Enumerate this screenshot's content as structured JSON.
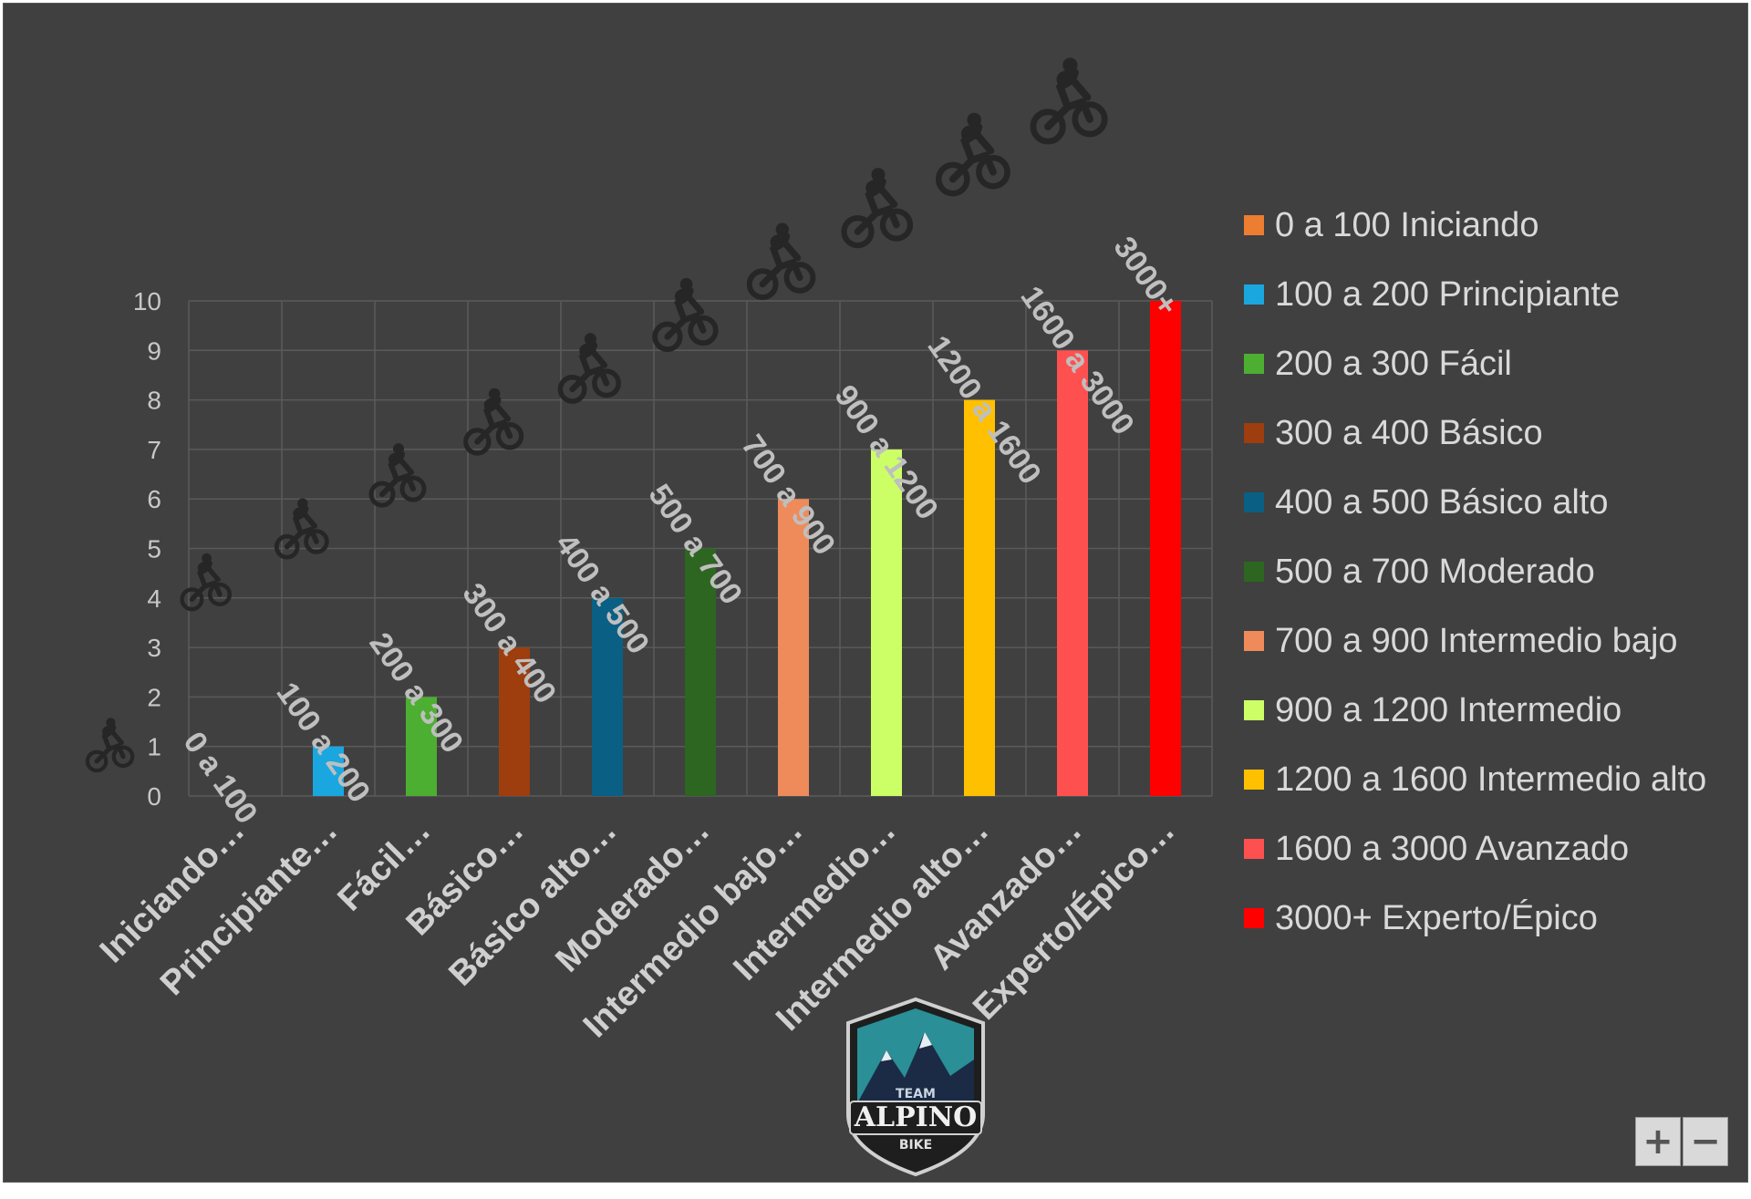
{
  "chart_data": {
    "type": "bar",
    "categories": [
      "Iniciando…",
      "Principiante…",
      "Fácil…",
      "Básico…",
      "Básico alto…",
      "Moderado…",
      "Intermedio bajo…",
      "Intermedio…",
      "Intermedio alto…",
      "Avanzado…",
      "Experto/Épico…"
    ],
    "values": [
      0,
      1,
      2,
      3,
      4,
      5,
      6,
      7,
      8,
      9,
      10
    ],
    "data_labels": [
      "0 a 100",
      "100 a 200",
      "200 a 300",
      "300 a 400",
      "400 a 500",
      "500 a 700",
      "700 a 900",
      "900 a 1200",
      "1200 a 1600",
      "1600 a 3000",
      "3000+"
    ],
    "colors": [
      "#ED7D31",
      "#1AA7E0",
      "#4CAF32",
      "#9E3D0E",
      "#0A5F84",
      "#2D6620",
      "#EF8B5B",
      "#CCFF66",
      "#FFC000",
      "#FF5050",
      "#FF0000"
    ],
    "ylim": [
      0,
      10
    ],
    "yticks": [
      "0",
      "1",
      "2",
      "3",
      "4",
      "5",
      "6",
      "7",
      "8",
      "9",
      "10"
    ],
    "grid": true,
    "legend_position": "right",
    "legend": [
      "0 a 100 Iniciando",
      "100 a 200 Principiante",
      "200 a 300 Fácil",
      "300 a 400 Básico",
      "400 a 500 Básico alto",
      "500 a 700 Moderado",
      "700 a 900 Intermedio bajo",
      "900 a 1200 Intermedio",
      "1200 a 1600 Intermedio alto",
      "1600 a 3000 Avanzado",
      "3000+ Experto/Épico"
    ],
    "marker_icon": "cyclist-icon"
  },
  "logo": {
    "name": "alpino-bike-logo",
    "text": "ALPINO",
    "subtext": "BIKE",
    "top_text": "TEAM"
  },
  "zoom": {
    "plus": "+",
    "minus": "−"
  },
  "colors": {
    "background": "#404040",
    "text": "#d9d9d9",
    "grid": "#5a5a5a"
  }
}
